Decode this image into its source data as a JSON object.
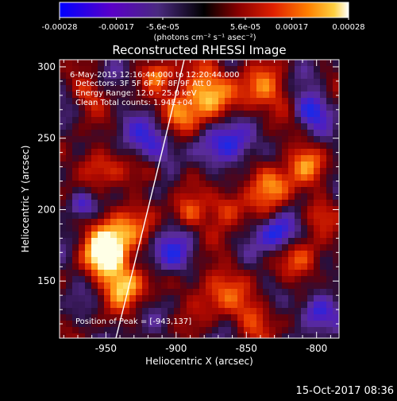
{
  "colorbar": {
    "ticks": [
      "-0.00028",
      "-0.00017",
      "-5.6e-05",
      "5.6e-05",
      "0.00017",
      "0.00028"
    ],
    "unit_label": "(photons cm⁻² s⁻¹ asec⁻²)",
    "colors": [
      "#0000ff",
      "#6000c0",
      "#5a2a9a",
      "#000000",
      "#8a0000",
      "#e02000",
      "#ff7a00",
      "#ffd040",
      "#ffffff"
    ]
  },
  "plot": {
    "title": "Reconstructed RHESSI Image",
    "info_lines": [
      "6-May-2015 12:16:44.000 to 12:20:44.000",
      "Detectors: 3F 5F 6F 7F 8F 9F  Att 0",
      "Energy Range: 12.0 - 25.0 keV",
      "Clean     Total counts: 1.94E+04"
    ],
    "peak_label": "Position of Peak = [-943,137]",
    "xlabel": "Heliocentric X (arcsec)",
    "ylabel": "Heliocentric Y (arcsec)",
    "xticks": [
      "-950",
      "-900",
      "-850",
      "-800"
    ],
    "yticks": [
      "150",
      "200",
      "250",
      "300"
    ],
    "xlim": [
      -983,
      -784
    ],
    "ylim": [
      110,
      305
    ]
  },
  "timestamp": "15-Oct-2017 08:36"
}
